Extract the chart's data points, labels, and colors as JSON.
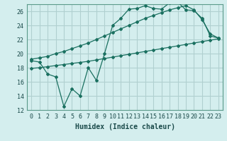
{
  "xlabel": "Humidex (Indice chaleur)",
  "bg_color": "#d4eeee",
  "grid_color": "#b0d0d0",
  "line_color": "#1a7060",
  "xlim": [
    -0.5,
    23.5
  ],
  "ylim": [
    12,
    27
  ],
  "yticks": [
    12,
    14,
    16,
    18,
    20,
    22,
    24,
    26
  ],
  "xticks": [
    0,
    1,
    2,
    3,
    4,
    5,
    6,
    7,
    8,
    9,
    10,
    11,
    12,
    13,
    14,
    15,
    16,
    17,
    18,
    19,
    20,
    21,
    22,
    23
  ],
  "line1_x": [
    0,
    1,
    2,
    3,
    4,
    5,
    6,
    7,
    8,
    9,
    10,
    11,
    12,
    13,
    14,
    15,
    16,
    17,
    18,
    19,
    20,
    21,
    22,
    23
  ],
  "line1_y": [
    19.0,
    18.8,
    17.1,
    16.7,
    12.5,
    15.0,
    14.0,
    18.0,
    16.2,
    20.0,
    24.0,
    25.0,
    26.3,
    26.4,
    26.8,
    26.4,
    26.3,
    27.2,
    27.3,
    26.2,
    26.1,
    25.0,
    22.5,
    22.2
  ],
  "line2_x": [
    0,
    1,
    2,
    3,
    4,
    5,
    6,
    7,
    8,
    9,
    10,
    11,
    12,
    13,
    14,
    15,
    16,
    17,
    18,
    19,
    20,
    21,
    22,
    23
  ],
  "line2_y": [
    19.2,
    19.4,
    19.6,
    20.0,
    20.3,
    20.7,
    21.1,
    21.5,
    22.0,
    22.5,
    23.0,
    23.5,
    24.0,
    24.5,
    25.0,
    25.4,
    25.8,
    26.2,
    26.5,
    26.8,
    26.2,
    24.8,
    22.8,
    22.2
  ],
  "line3_x": [
    0,
    1,
    2,
    3,
    4,
    5,
    6,
    7,
    8,
    9,
    10,
    11,
    12,
    13,
    14,
    15,
    16,
    17,
    18,
    19,
    20,
    21,
    22,
    23
  ],
  "line3_y": [
    17.9,
    18.0,
    18.15,
    18.3,
    18.45,
    18.6,
    18.75,
    18.9,
    19.1,
    19.3,
    19.5,
    19.7,
    19.9,
    20.1,
    20.3,
    20.5,
    20.7,
    20.9,
    21.1,
    21.3,
    21.5,
    21.7,
    21.9,
    22.1
  ],
  "tick_fontsize": 6,
  "xlabel_fontsize": 7
}
